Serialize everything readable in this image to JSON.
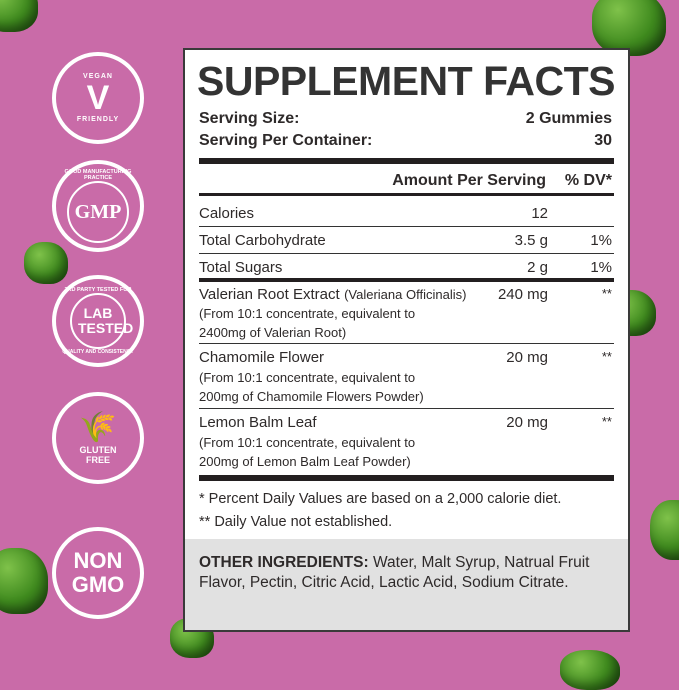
{
  "badges": [
    {
      "top": "VEGAN",
      "center": "V",
      "bottom": "FRIENDLY"
    },
    {
      "top": "GOOD MANUFACTURING PRACTICE",
      "center": "GMP"
    },
    {
      "top": "3RD PARTY TESTED FOR",
      "center": "LAB TESTED",
      "bottom": "QUALITY AND CONSISTENCY"
    },
    {
      "center": "GLUTEN FREE"
    },
    {
      "center": "NON GMO"
    }
  ],
  "facts": {
    "title": "SUPPLEMENT FACTS",
    "serving_size_label": "Serving Size:",
    "serving_size": "2 Gummies",
    "per_container_label": "Serving Per Container:",
    "per_container": "30",
    "amount_header": "Amount Per Serving",
    "dv_header": "% DV*",
    "rows": [
      {
        "name": "Calories",
        "amount": "12",
        "dv": ""
      },
      {
        "name": "Total Carbohydrate",
        "amount": "3.5 g",
        "dv": "1%"
      },
      {
        "name": "Total Sugars",
        "amount": "2 g",
        "dv": "1%"
      }
    ],
    "extracts": [
      {
        "name": "Valerian Root Extract",
        "latin": "(Valeriana Officinalis)",
        "line2": "(From 10:1 concentrate, equivalent to",
        "line3": "2400mg of Valerian Root)",
        "amount": "240 mg",
        "dv": "**"
      },
      {
        "name": "Chamomile Flower",
        "line2": "(From 10:1 concentrate, equivalent to",
        "line3": "200mg of Chamomile Flowers Powder)",
        "amount": "20 mg",
        "dv": "**"
      },
      {
        "name": "Lemon Balm Leaf",
        "line2": "(From 10:1 concentrate, equivalent to",
        "line3": "200mg of Lemon Balm Leaf Powder)",
        "amount": "20 mg",
        "dv": "**"
      }
    ],
    "footnote1": "* Percent Daily Values are based on a 2,000 calorie diet.",
    "footnote2": "** Daily Value not established.",
    "other_label": "OTHER INGREDIENTS:",
    "other_text": " Water, Malt Syrup, Natrual Fruit Flavor, Pectin, Citric Acid, Lactic Acid, Sodium Citrate."
  }
}
